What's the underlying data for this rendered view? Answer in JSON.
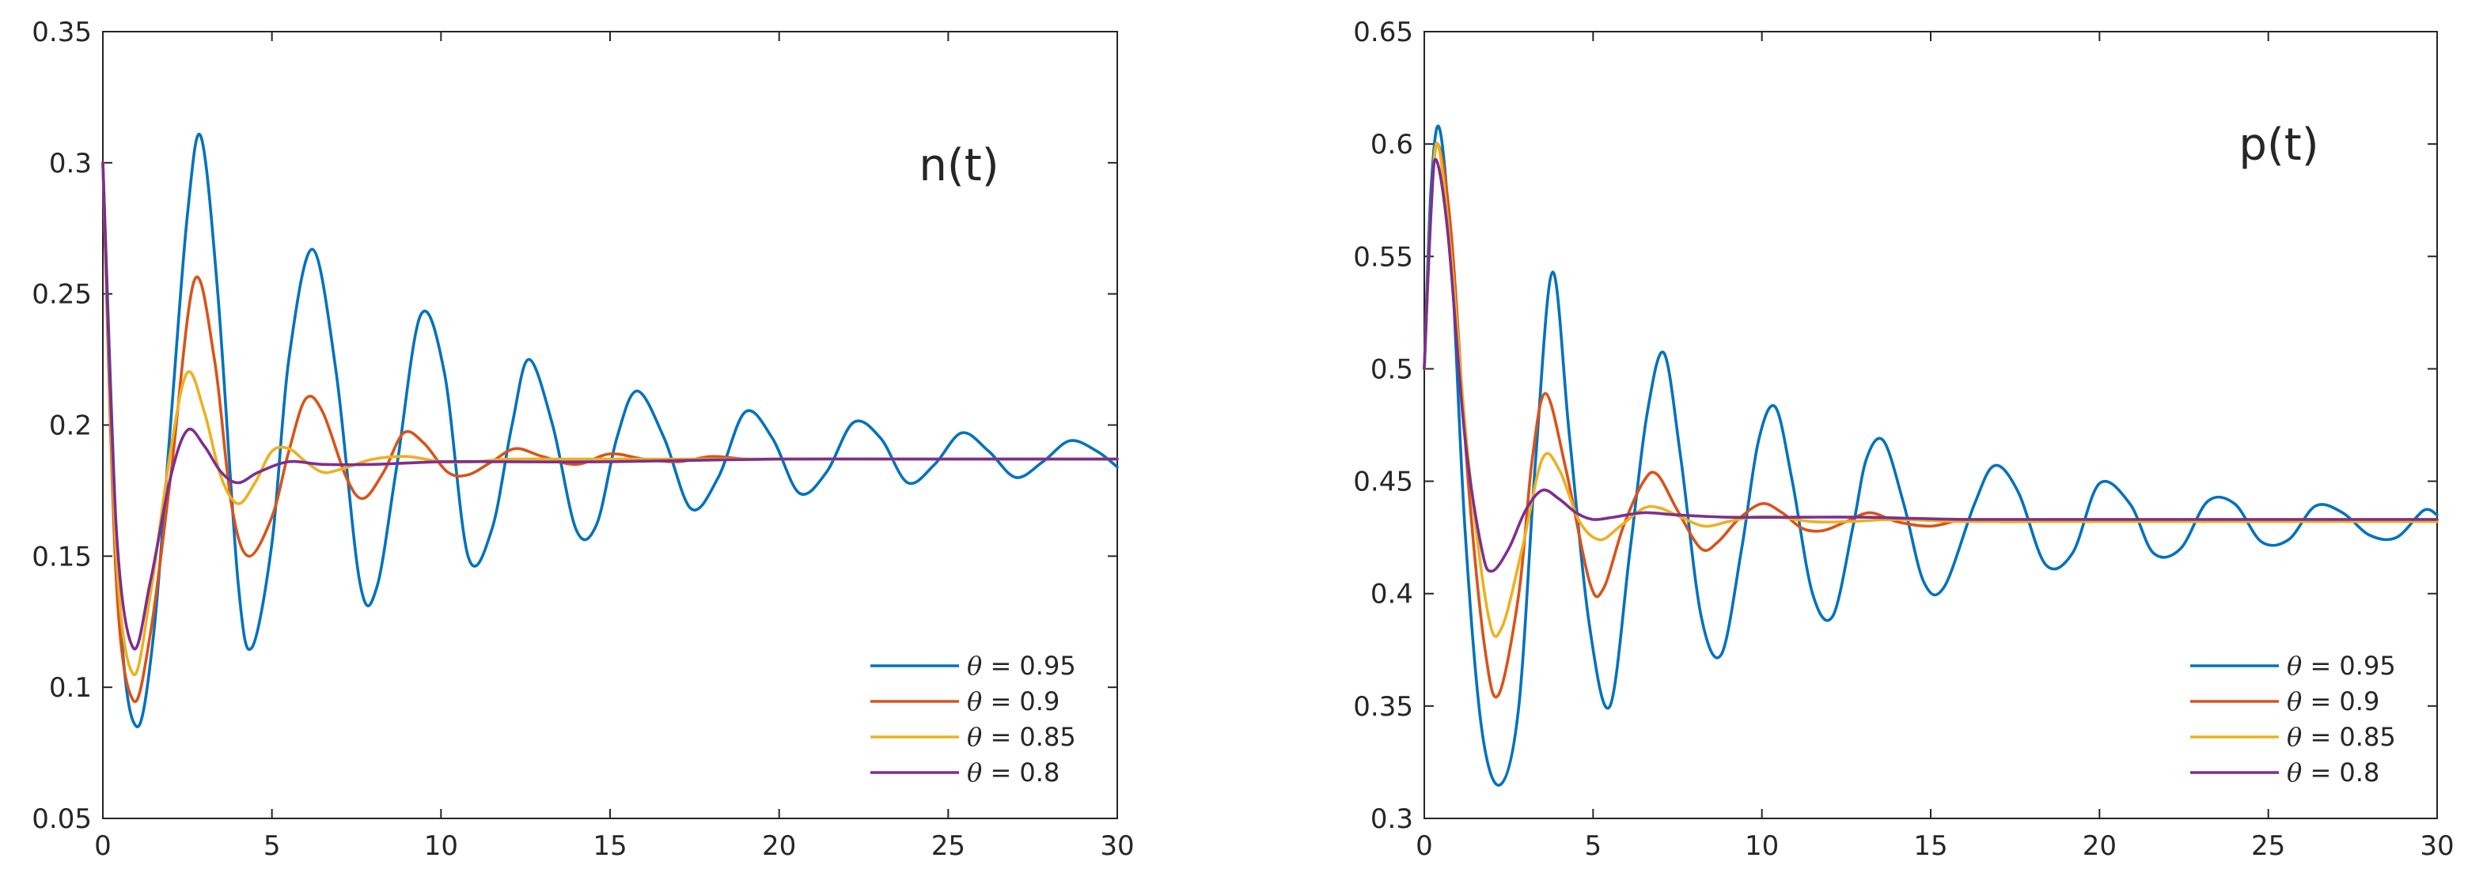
{
  "chart_data": [
    {
      "type": "line",
      "title": "n(t)",
      "xlabel": "",
      "ylabel": "",
      "xlim": [
        0,
        30
      ],
      "ylim": [
        0.05,
        0.35
      ],
      "xticks": [
        "0",
        "5",
        "10",
        "15",
        "20",
        "25",
        "30"
      ],
      "yticks": [
        "0.05",
        "0.1",
        "0.15",
        "0.2",
        "0.25",
        "0.3",
        "0.35"
      ],
      "legend_position": "bottom-right",
      "series": [
        {
          "name": "θ = 0.95",
          "symbol": "θ",
          "label": " = 0.95",
          "color": "#0072BD",
          "x": [
            0,
            0.5,
            1,
            1.5,
            2,
            2.5,
            2.9,
            3.4,
            4,
            4.4,
            5,
            5.5,
            6.2,
            6.9,
            7.6,
            8.1,
            8.7,
            9.4,
            10.1,
            10.8,
            11.5,
            12.1,
            12.6,
            13.3,
            14,
            14.6,
            15.2,
            15.8,
            16.6,
            17.4,
            18.2,
            19,
            19.8,
            20.6,
            21.4,
            22.2,
            23,
            23.8,
            24.6,
            25.4,
            26.2,
            27,
            27.8,
            28.6,
            29.4,
            30
          ],
          "values": [
            0.3,
            0.13,
            0.085,
            0.12,
            0.2,
            0.28,
            0.31,
            0.25,
            0.14,
            0.115,
            0.155,
            0.225,
            0.267,
            0.22,
            0.14,
            0.138,
            0.185,
            0.242,
            0.22,
            0.15,
            0.16,
            0.2,
            0.225,
            0.2,
            0.16,
            0.162,
            0.195,
            0.213,
            0.195,
            0.168,
            0.18,
            0.205,
            0.195,
            0.174,
            0.182,
            0.201,
            0.195,
            0.178,
            0.185,
            0.197,
            0.19,
            0.18,
            0.186,
            0.194,
            0.19,
            0.184
          ]
        },
        {
          "name": "θ = 0.9",
          "symbol": "θ",
          "label": " = 0.9",
          "color": "#D95319",
          "x": [
            0,
            0.4,
            0.9,
            1.4,
            2,
            2.7,
            3.3,
            3.8,
            4.3,
            5,
            5.5,
            6,
            6.5,
            7.2,
            7.7,
            8.3,
            8.9,
            9.5,
            10.2,
            10.8,
            11.5,
            12.2,
            13,
            14,
            15,
            16,
            17,
            18,
            19,
            20,
            22,
            24,
            26,
            28,
            30
          ],
          "values": [
            0.3,
            0.14,
            0.095,
            0.12,
            0.18,
            0.255,
            0.225,
            0.17,
            0.15,
            0.165,
            0.19,
            0.21,
            0.205,
            0.18,
            0.172,
            0.182,
            0.197,
            0.193,
            0.182,
            0.181,
            0.186,
            0.191,
            0.188,
            0.185,
            0.189,
            0.187,
            0.186,
            0.188,
            0.187,
            0.187,
            0.187,
            0.187,
            0.187,
            0.187,
            0.187
          ]
        },
        {
          "name": "θ = 0.85",
          "symbol": "θ",
          "label": " = 0.85",
          "color": "#EDB120",
          "x": [
            0,
            0.4,
            0.9,
            1.4,
            2,
            2.5,
            3,
            3.5,
            4,
            4.5,
            5,
            5.5,
            6,
            6.5,
            7,
            8,
            9,
            10,
            11,
            12,
            14,
            16,
            20,
            25,
            30
          ],
          "values": [
            0.3,
            0.15,
            0.105,
            0.135,
            0.19,
            0.22,
            0.205,
            0.18,
            0.17,
            0.178,
            0.19,
            0.191,
            0.186,
            0.182,
            0.183,
            0.187,
            0.188,
            0.186,
            0.186,
            0.187,
            0.187,
            0.187,
            0.187,
            0.187,
            0.187
          ]
        },
        {
          "name": "θ = 0.8",
          "symbol": "θ",
          "label": " = 0.8",
          "color": "#7E2F8E",
          "x": [
            0,
            0.4,
            0.9,
            1.4,
            2,
            2.5,
            3,
            3.5,
            4,
            4.6,
            5.5,
            6.5,
            8,
            10,
            12,
            15,
            20,
            25,
            30
          ],
          "values": [
            0.3,
            0.16,
            0.115,
            0.14,
            0.18,
            0.198,
            0.192,
            0.182,
            0.178,
            0.182,
            0.186,
            0.185,
            0.185,
            0.186,
            0.186,
            0.186,
            0.187,
            0.187,
            0.187
          ]
        }
      ]
    },
    {
      "type": "line",
      "title": "p(t)",
      "xlabel": "",
      "ylabel": "",
      "xlim": [
        0,
        30
      ],
      "ylim": [
        0.3,
        0.65
      ],
      "xticks": [
        "0",
        "5",
        "10",
        "15",
        "20",
        "25",
        "30"
      ],
      "yticks": [
        "0.3",
        "0.35",
        "0.4",
        "0.45",
        "0.5",
        "0.55",
        "0.6",
        "0.65"
      ],
      "legend_position": "bottom-right",
      "series": [
        {
          "name": "θ = 0.95",
          "symbol": "θ",
          "label": " = 0.95",
          "color": "#0072BD",
          "x": [
            0,
            0.2,
            0.45,
            0.8,
            1.2,
            1.7,
            2.25,
            2.8,
            3.3,
            3.8,
            4.3,
            4.9,
            5.5,
            6.1,
            6.6,
            7.1,
            7.6,
            8.2,
            8.8,
            9.4,
            9.9,
            10.4,
            10.9,
            11.5,
            12.1,
            12.7,
            13.1,
            13.6,
            14.2,
            14.8,
            15.4,
            16.3,
            16.9,
            17.6,
            18.4,
            19.2,
            20,
            20.9,
            21.6,
            22.4,
            23.2,
            24,
            24.8,
            25.6,
            26.4,
            27.2,
            28,
            28.8,
            29.6,
            30
          ],
          "values": [
            0.5,
            0.58,
            0.607,
            0.55,
            0.43,
            0.34,
            0.315,
            0.35,
            0.46,
            0.543,
            0.47,
            0.385,
            0.35,
            0.42,
            0.48,
            0.507,
            0.46,
            0.39,
            0.373,
            0.42,
            0.468,
            0.483,
            0.45,
            0.4,
            0.39,
            0.43,
            0.46,
            0.468,
            0.44,
            0.405,
            0.403,
            0.44,
            0.457,
            0.445,
            0.413,
            0.418,
            0.449,
            0.44,
            0.418,
            0.42,
            0.441,
            0.44,
            0.423,
            0.424,
            0.439,
            0.436,
            0.426,
            0.425,
            0.437,
            0.435
          ]
        },
        {
          "name": "θ = 0.9",
          "symbol": "θ",
          "label": " = 0.9",
          "color": "#D95319",
          "x": [
            0,
            0.2,
            0.4,
            0.8,
            1.3,
            1.8,
            2.2,
            2.8,
            3.2,
            3.6,
            4.2,
            4.9,
            5.3,
            5.9,
            6.5,
            6.9,
            7.5,
            8.2,
            8.7,
            9.3,
            10,
            10.6,
            11.2,
            11.8,
            12.5,
            13.2,
            14,
            15,
            16,
            17,
            18,
            20,
            22,
            25,
            30
          ],
          "values": [
            0.5,
            0.57,
            0.6,
            0.56,
            0.45,
            0.375,
            0.355,
            0.4,
            0.46,
            0.489,
            0.455,
            0.405,
            0.402,
            0.43,
            0.45,
            0.453,
            0.437,
            0.42,
            0.423,
            0.433,
            0.44,
            0.436,
            0.429,
            0.428,
            0.432,
            0.436,
            0.432,
            0.43,
            0.433,
            0.432,
            0.432,
            0.432,
            0.432,
            0.432,
            0.432
          ]
        },
        {
          "name": "θ = 0.85",
          "symbol": "θ",
          "label": " = 0.85",
          "color": "#EDB120",
          "x": [
            0,
            0.2,
            0.4,
            0.8,
            1.3,
            1.9,
            2.3,
            2.9,
            3.5,
            4,
            4.6,
            5.2,
            5.8,
            6.5,
            7,
            7.6,
            8.3,
            9,
            9.7,
            10.5,
            11.5,
            12.5,
            14,
            16,
            20,
            25,
            30
          ],
          "values": [
            0.5,
            0.57,
            0.6,
            0.55,
            0.46,
            0.39,
            0.385,
            0.42,
            0.46,
            0.455,
            0.432,
            0.424,
            0.43,
            0.438,
            0.438,
            0.434,
            0.43,
            0.432,
            0.434,
            0.434,
            0.432,
            0.432,
            0.433,
            0.432,
            0.432,
            0.432,
            0.432
          ]
        },
        {
          "name": "θ = 0.8",
          "symbol": "θ",
          "label": " = 0.8",
          "color": "#7E2F8E",
          "x": [
            0,
            0.2,
            0.35,
            0.7,
            1.2,
            1.7,
            2,
            2.5,
            3,
            3.5,
            4,
            4.5,
            5,
            5.6,
            6.5,
            7.5,
            9,
            11,
            13,
            16,
            20,
            25,
            30
          ],
          "values": [
            0.5,
            0.57,
            0.593,
            0.56,
            0.47,
            0.42,
            0.41,
            0.42,
            0.437,
            0.446,
            0.442,
            0.436,
            0.433,
            0.434,
            0.436,
            0.435,
            0.434,
            0.434,
            0.434,
            0.433,
            0.433,
            0.433,
            0.433
          ]
        }
      ]
    }
  ]
}
